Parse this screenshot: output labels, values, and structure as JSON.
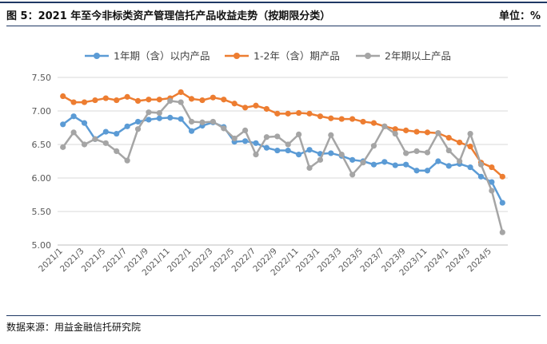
{
  "header": {
    "title": "图 5：2021 年至今非标类资产管理信托产品收益走势（按期限分类）",
    "unit": "单位：%"
  },
  "footer": {
    "source": "数据来源：用益金融信托研究院"
  },
  "chart_data": {
    "type": "line",
    "title": "",
    "xlabel": "",
    "ylabel": "",
    "ylim": [
      5.0,
      7.5
    ],
    "yticks": [
      "5.00",
      "5.50",
      "6.00",
      "6.50",
      "7.00",
      "7.50"
    ],
    "grid": true,
    "legend_position": "top",
    "x": [
      "2021/1",
      "2021/2",
      "2021/3",
      "2021/4",
      "2021/5",
      "2021/6",
      "2021/7",
      "2021/8",
      "2021/9",
      "2021/10",
      "2021/11",
      "2021/12",
      "2022/1",
      "2022/2",
      "2022/3",
      "2022/4",
      "2022/5",
      "2022/6",
      "2022/7",
      "2022/8",
      "2022/9",
      "2022/10",
      "2022/11",
      "2022/12",
      "2023/1",
      "2023/2",
      "2023/3",
      "2023/4",
      "2023/5",
      "2023/6",
      "2023/7",
      "2023/8",
      "2023/9",
      "2023/10",
      "2023/11",
      "2023/12",
      "2024/1",
      "2024/2",
      "2024/3",
      "2024/4",
      "2024/5",
      "2024/6"
    ],
    "xtick_labels": [
      "2021/1",
      "2021/3",
      "2021/5",
      "2021/7",
      "2021/9",
      "2021/11",
      "2022/1",
      "2022/3",
      "2022/5",
      "2022/7",
      "2022/9",
      "2022/11",
      "2023/1",
      "2023/3",
      "2023/5",
      "2023/7",
      "2023/9",
      "2023/11",
      "2024/1",
      "2024/3",
      "2024/5"
    ],
    "series": [
      {
        "name": "1年期（含）以内产品",
        "color": "#5b9bd5",
        "values": [
          6.8,
          6.92,
          6.82,
          6.58,
          6.69,
          6.66,
          6.77,
          6.84,
          6.87,
          6.89,
          6.9,
          6.88,
          6.7,
          6.78,
          6.83,
          6.76,
          6.54,
          6.55,
          6.52,
          6.45,
          6.41,
          6.41,
          6.35,
          6.42,
          6.36,
          6.37,
          6.33,
          6.27,
          6.25,
          6.2,
          6.24,
          6.19,
          6.2,
          6.11,
          6.11,
          6.25,
          6.18,
          6.21,
          6.16,
          6.02,
          5.94,
          5.63
        ]
      },
      {
        "name": "1-2年（含）期产品",
        "color": "#ed7d31",
        "values": [
          7.22,
          7.13,
          7.13,
          7.16,
          7.19,
          7.16,
          7.21,
          7.15,
          7.17,
          7.17,
          7.19,
          7.28,
          7.18,
          7.16,
          7.2,
          7.17,
          7.11,
          7.05,
          7.08,
          7.03,
          6.96,
          6.96,
          6.97,
          6.96,
          6.92,
          6.89,
          6.88,
          6.88,
          6.84,
          6.82,
          6.77,
          6.73,
          6.71,
          6.69,
          6.68,
          6.67,
          6.6,
          6.53,
          6.47,
          6.23,
          6.16,
          6.02
        ]
      },
      {
        "name": "2年期以上产品",
        "color": "#a5a5a5",
        "values": [
          6.46,
          6.68,
          6.5,
          6.58,
          6.52,
          6.4,
          6.26,
          6.73,
          6.98,
          6.97,
          7.15,
          7.13,
          6.84,
          6.83,
          6.84,
          6.74,
          6.59,
          6.71,
          6.35,
          6.61,
          6.62,
          6.5,
          6.65,
          6.15,
          6.27,
          6.64,
          6.35,
          6.05,
          6.23,
          6.48,
          6.77,
          6.66,
          6.37,
          6.4,
          6.38,
          6.67,
          6.41,
          6.25,
          6.66,
          6.2,
          5.81,
          5.19
        ]
      }
    ]
  }
}
